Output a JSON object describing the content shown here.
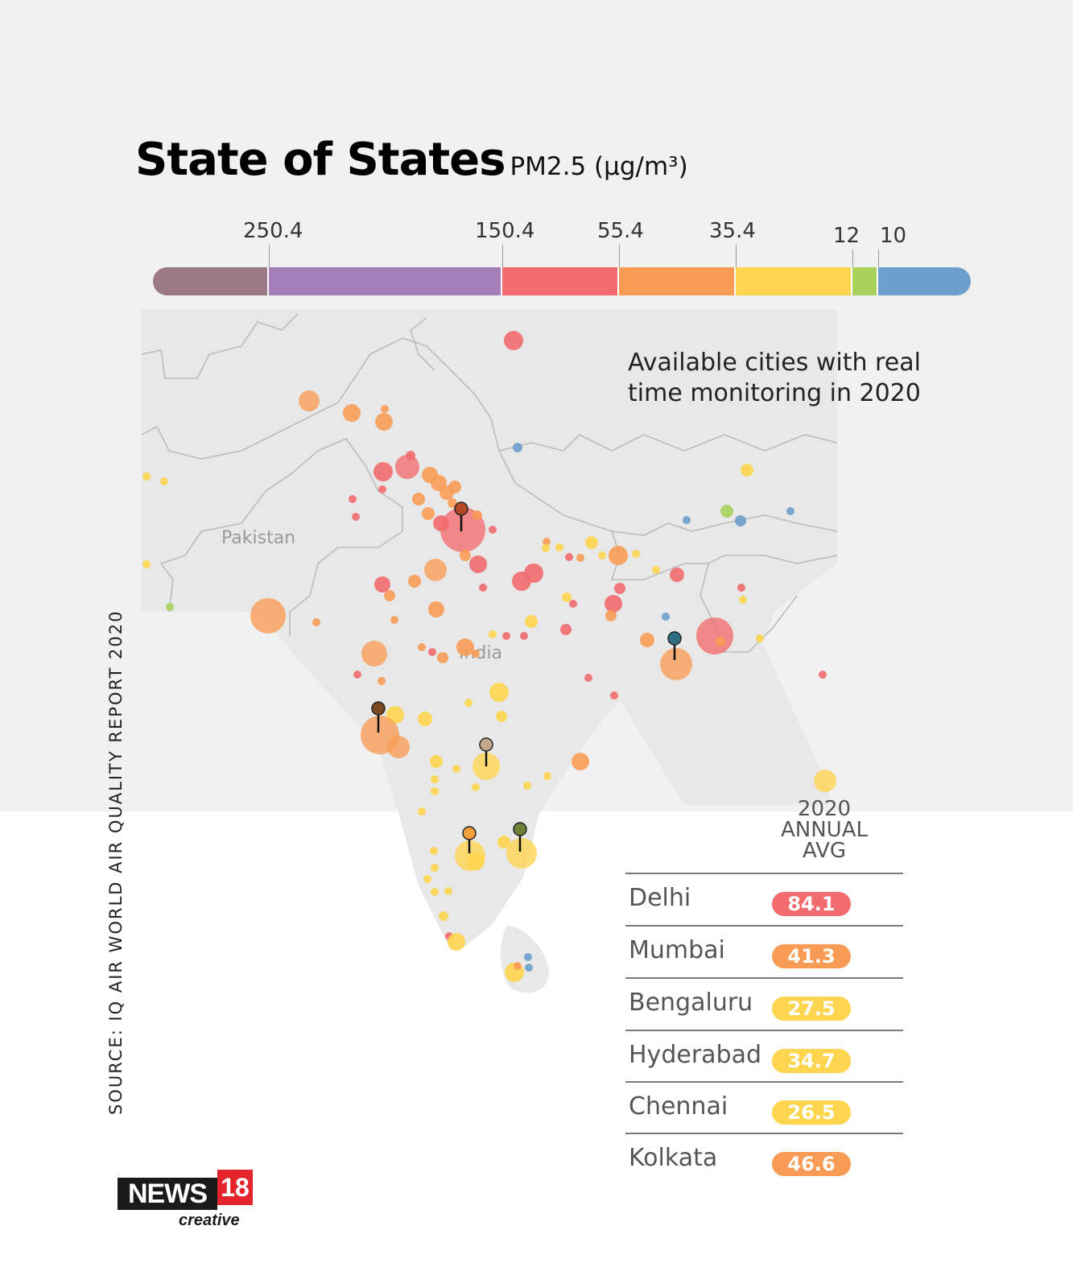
{
  "header": {
    "title": "State of States",
    "unit": "PM2.5  (μg/m³)"
  },
  "scale": {
    "ticks": [
      "250.4",
      "150.4",
      "55.4",
      "35.4",
      "12",
      "10"
    ],
    "colors": {
      "hazardous": "#9c7a83",
      "very_unhealthy": "#a57fba",
      "unhealthy": "#f26b6e",
      "unhealthy_sensitive": "#f89c55",
      "moderate": "#fed54e",
      "good": "#a8d25b",
      "very_good": "#6c9fcb"
    }
  },
  "map": {
    "country_labels": [
      "Pakistan",
      "India"
    ],
    "note": [
      "Available cities with real",
      "time monitoring in 2020"
    ],
    "pins": [
      {
        "city": "Delhi",
        "color": "#b34827"
      },
      {
        "city": "Mumbai",
        "color": "#7b4a22"
      },
      {
        "city": "Bengaluru",
        "color": "#f5a040"
      },
      {
        "city": "Hyderabad",
        "color": "#c2a98b"
      },
      {
        "city": "Chennai",
        "color": "#6e8036"
      },
      {
        "city": "Kolkata",
        "color": "#2f6f84"
      }
    ]
  },
  "table": {
    "header": [
      "2020",
      "ANNUAL",
      "AVG"
    ],
    "rows": [
      {
        "city": "Delhi",
        "value": "84.1",
        "color": "#f26b6e"
      },
      {
        "city": "Mumbai",
        "value": "41.3",
        "color": "#f89c55"
      },
      {
        "city": "Bengaluru",
        "value": "27.5",
        "color": "#fed54e"
      },
      {
        "city": "Hyderabad",
        "value": "34.7",
        "color": "#fed54e"
      },
      {
        "city": "Chennai",
        "value": "26.5",
        "color": "#fed54e"
      },
      {
        "city": "Kolkata",
        "value": "46.6",
        "color": "#f89c55"
      }
    ]
  },
  "source": "SOURCE: IQ AIR WORLD AIR QUALITY REPORT 2020",
  "logo": {
    "brand": "NEWS",
    "number": "18",
    "sub": "creative"
  }
}
